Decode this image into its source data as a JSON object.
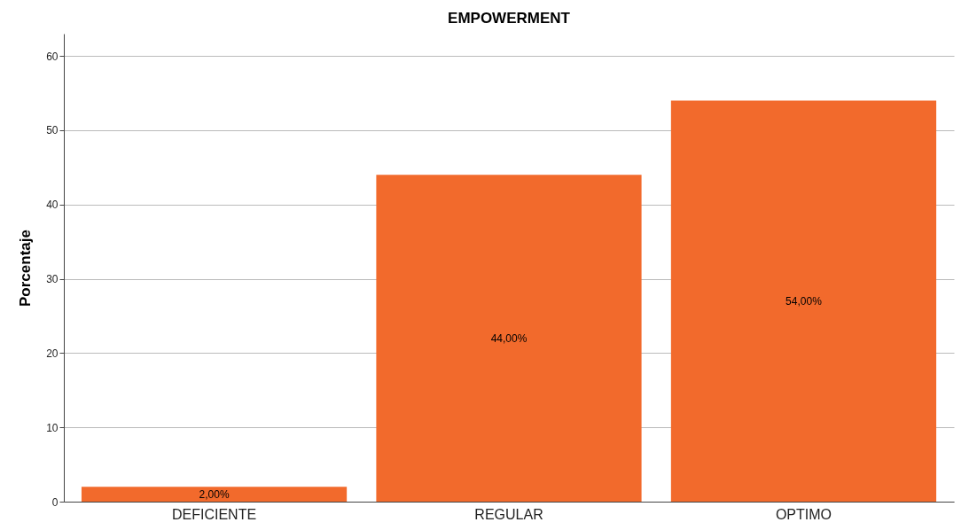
{
  "chart_data": {
    "type": "bar",
    "title": "EMPOWERMENT",
    "ylabel": "Porcentaje",
    "categories": [
      "DEFICIENTE",
      "REGULAR",
      "OPTIMO"
    ],
    "values": [
      2,
      44,
      54
    ],
    "value_labels": [
      "2,00%",
      "44,00%",
      "54,00%"
    ],
    "color": "#f26a2c",
    "ylim": [
      0,
      63
    ],
    "yticks": [
      0,
      10,
      20,
      30,
      40,
      50,
      60
    ],
    "grid": "y"
  }
}
